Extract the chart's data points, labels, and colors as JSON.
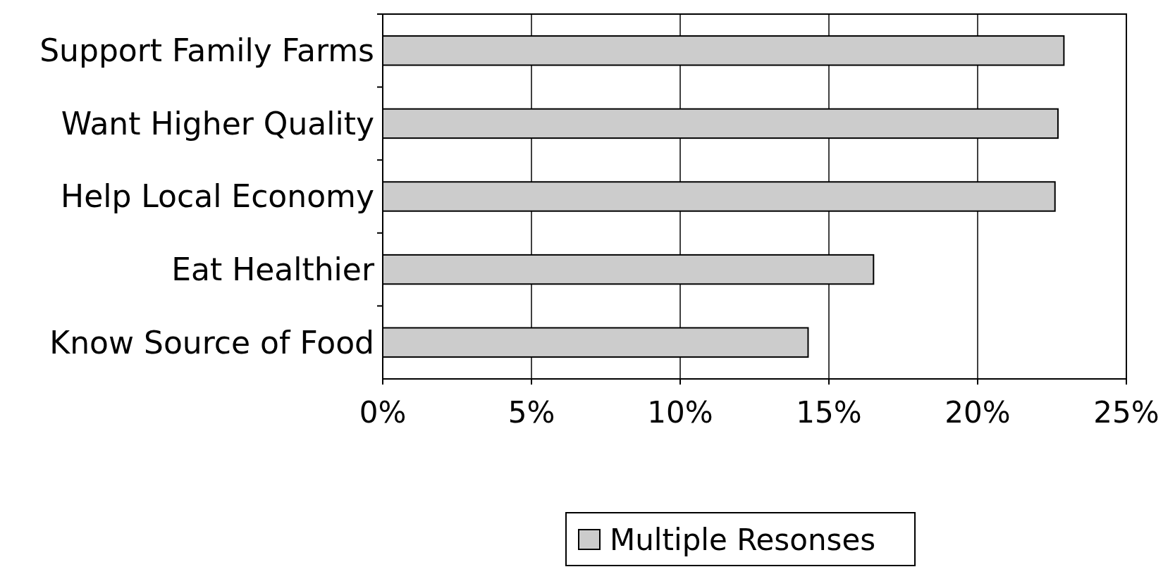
{
  "chart_data": {
    "type": "bar",
    "orientation": "horizontal",
    "categories": [
      "Support Family Farms",
      "Want Higher Quality",
      "Help Local Economy",
      "Eat Healthier",
      "Know Source of Food"
    ],
    "series": [
      {
        "name": "Multiple Resonses",
        "color": "#cccccc",
        "values": [
          22.9,
          22.7,
          22.6,
          16.5,
          14.3
        ]
      }
    ],
    "xlim": [
      0,
      25
    ],
    "xticks": [
      {
        "value": 0,
        "label": "0%"
      },
      {
        "value": 5,
        "label": "5%"
      },
      {
        "value": 10,
        "label": "10%"
      },
      {
        "value": 15,
        "label": "15%"
      },
      {
        "value": 20,
        "label": "20%"
      },
      {
        "value": 25,
        "label": "25%"
      }
    ],
    "grid": "x",
    "legend": "bottom"
  }
}
